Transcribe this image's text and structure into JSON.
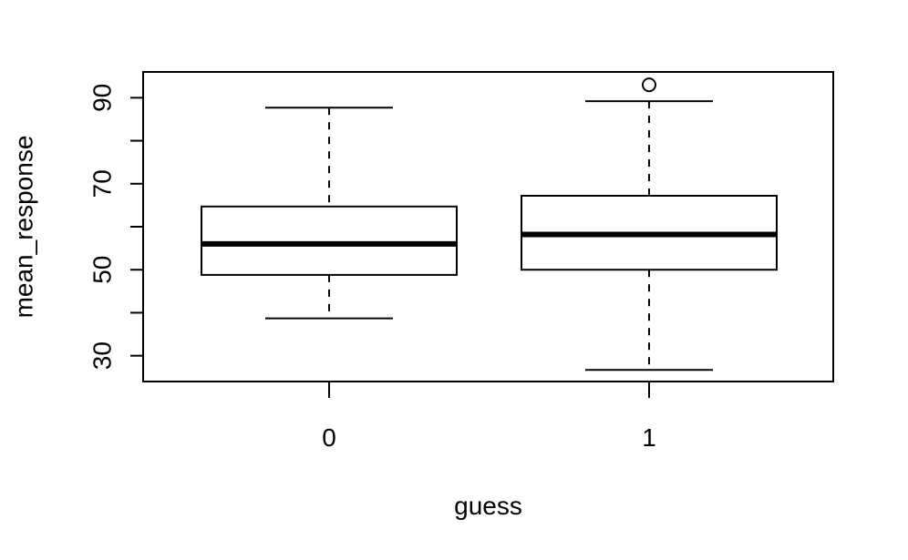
{
  "chart_data": {
    "type": "boxplot",
    "title": "",
    "xlabel": "guess",
    "ylabel": "mean_response",
    "categories": [
      "0",
      "1"
    ],
    "ylim": [
      24,
      96
    ],
    "y_ticks": [
      30,
      40,
      50,
      60,
      70,
      80,
      90
    ],
    "y_tick_labels": [
      "30",
      "",
      "50",
      "",
      "70",
      "",
      "90"
    ],
    "grid": false,
    "boxes": [
      {
        "category": "0",
        "whisker_low": 38.7,
        "q1": 48.8,
        "median": 56,
        "q3": 64.7,
        "whisker_high": 87.7,
        "outliers": []
      },
      {
        "category": "1",
        "whisker_low": 26.7,
        "q1": 50,
        "median": 58.2,
        "q3": 67.2,
        "whisker_high": 89.2,
        "outliers": [
          93
        ]
      }
    ],
    "colors": {
      "stroke": "#000000",
      "fill": "#ffffff"
    }
  }
}
